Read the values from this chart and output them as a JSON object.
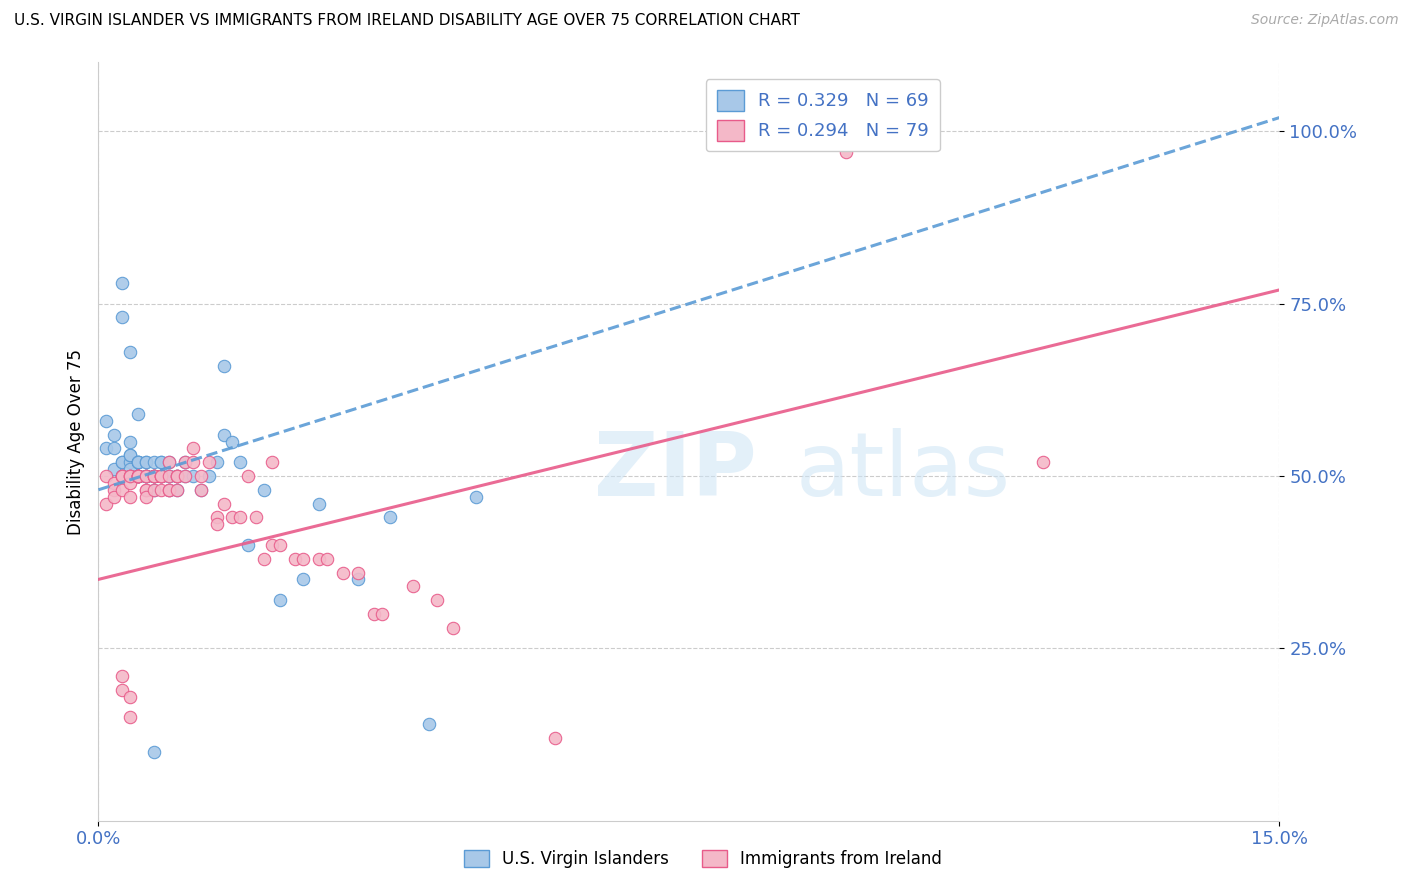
{
  "title": "U.S. VIRGIN ISLANDER VS IMMIGRANTS FROM IRELAND DISABILITY AGE OVER 75 CORRELATION CHART",
  "source": "Source: ZipAtlas.com",
  "ylabel": "Disability Age Over 75",
  "xlim": [
    0.0,
    0.15
  ],
  "ylim": [
    0.0,
    1.1
  ],
  "ytick_labels": [
    "25.0%",
    "50.0%",
    "75.0%",
    "100.0%"
  ],
  "ytick_values": [
    0.25,
    0.5,
    0.75,
    1.0
  ],
  "xtick_values": [
    0.0,
    0.15
  ],
  "xtick_labels": [
    "0.0%",
    "15.0%"
  ],
  "R1": 0.329,
  "N1": 69,
  "R2": 0.294,
  "N2": 79,
  "color_blue": "#a8c8e8",
  "color_pink": "#f4b8c8",
  "color_blue_line": "#5b9bd5",
  "color_pink_line": "#e85b8a",
  "color_label_blue": "#4472c4",
  "watermark": "ZIPatlas",
  "blue_line_x": [
    0.0,
    0.15
  ],
  "blue_line_y": [
    0.48,
    1.02
  ],
  "pink_line_x": [
    0.0,
    0.15
  ],
  "pink_line_y": [
    0.35,
    0.77
  ],
  "blue_scatter_x": [
    0.001,
    0.001,
    0.002,
    0.002,
    0.002,
    0.003,
    0.003,
    0.003,
    0.003,
    0.003,
    0.004,
    0.004,
    0.004,
    0.004,
    0.004,
    0.004,
    0.005,
    0.005,
    0.005,
    0.005,
    0.005,
    0.005,
    0.005,
    0.006,
    0.006,
    0.006,
    0.006,
    0.006,
    0.006,
    0.007,
    0.007,
    0.007,
    0.007,
    0.007,
    0.008,
    0.008,
    0.008,
    0.008,
    0.009,
    0.009,
    0.009,
    0.009,
    0.01,
    0.01,
    0.01,
    0.011,
    0.011,
    0.012,
    0.013,
    0.014,
    0.015,
    0.016,
    0.017,
    0.018,
    0.019,
    0.021,
    0.023,
    0.026,
    0.028,
    0.033,
    0.037,
    0.042,
    0.048,
    0.003,
    0.003,
    0.004,
    0.005,
    0.016,
    0.007
  ],
  "blue_scatter_y": [
    0.54,
    0.58,
    0.54,
    0.51,
    0.56,
    0.52,
    0.52,
    0.5,
    0.5,
    0.5,
    0.52,
    0.53,
    0.55,
    0.53,
    0.51,
    0.5,
    0.52,
    0.52,
    0.52,
    0.52,
    0.5,
    0.5,
    0.5,
    0.52,
    0.52,
    0.5,
    0.5,
    0.5,
    0.5,
    0.52,
    0.5,
    0.5,
    0.5,
    0.48,
    0.52,
    0.52,
    0.5,
    0.5,
    0.52,
    0.5,
    0.5,
    0.48,
    0.5,
    0.5,
    0.48,
    0.52,
    0.5,
    0.5,
    0.48,
    0.5,
    0.52,
    0.56,
    0.55,
    0.52,
    0.4,
    0.48,
    0.32,
    0.35,
    0.46,
    0.35,
    0.44,
    0.14,
    0.47,
    0.78,
    0.73,
    0.68,
    0.59,
    0.66,
    0.1
  ],
  "pink_scatter_x": [
    0.001,
    0.001,
    0.002,
    0.002,
    0.002,
    0.003,
    0.003,
    0.003,
    0.003,
    0.004,
    0.004,
    0.004,
    0.004,
    0.004,
    0.005,
    0.005,
    0.005,
    0.005,
    0.005,
    0.005,
    0.006,
    0.006,
    0.006,
    0.006,
    0.006,
    0.007,
    0.007,
    0.007,
    0.007,
    0.007,
    0.008,
    0.008,
    0.008,
    0.008,
    0.008,
    0.009,
    0.009,
    0.009,
    0.009,
    0.01,
    0.01,
    0.01,
    0.01,
    0.011,
    0.011,
    0.012,
    0.012,
    0.013,
    0.013,
    0.014,
    0.015,
    0.015,
    0.016,
    0.017,
    0.018,
    0.019,
    0.02,
    0.021,
    0.022,
    0.023,
    0.025,
    0.026,
    0.028,
    0.029,
    0.031,
    0.033,
    0.035,
    0.036,
    0.04,
    0.043,
    0.045,
    0.003,
    0.003,
    0.004,
    0.004,
    0.022,
    0.058,
    0.095,
    0.12
  ],
  "pink_scatter_y": [
    0.5,
    0.46,
    0.49,
    0.48,
    0.47,
    0.5,
    0.5,
    0.5,
    0.48,
    0.5,
    0.5,
    0.49,
    0.47,
    0.5,
    0.5,
    0.5,
    0.5,
    0.5,
    0.5,
    0.5,
    0.5,
    0.5,
    0.48,
    0.48,
    0.47,
    0.5,
    0.5,
    0.5,
    0.48,
    0.5,
    0.5,
    0.5,
    0.5,
    0.48,
    0.5,
    0.5,
    0.52,
    0.48,
    0.48,
    0.5,
    0.5,
    0.5,
    0.48,
    0.52,
    0.5,
    0.52,
    0.54,
    0.5,
    0.48,
    0.52,
    0.44,
    0.43,
    0.46,
    0.44,
    0.44,
    0.5,
    0.44,
    0.38,
    0.4,
    0.4,
    0.38,
    0.38,
    0.38,
    0.38,
    0.36,
    0.36,
    0.3,
    0.3,
    0.34,
    0.32,
    0.28,
    0.21,
    0.19,
    0.18,
    0.15,
    0.52,
    0.12,
    0.97,
    0.52
  ]
}
